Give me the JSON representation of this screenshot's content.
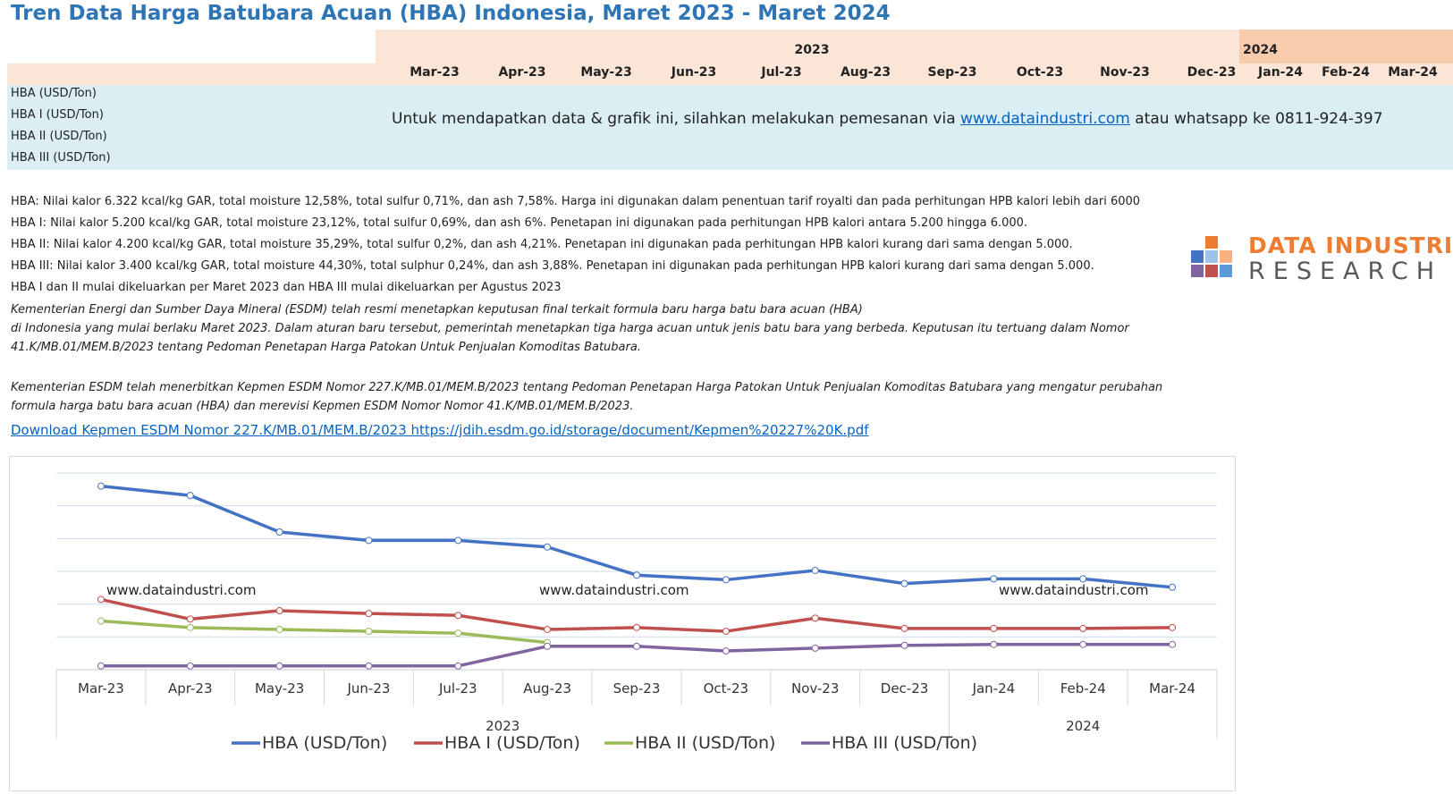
{
  "title": "Tren Data Harga Batubara Acuan (HBA) Indonesia, Maret 2023 - Maret 2024",
  "table": {
    "year_2023": "2023",
    "year_2024": "2024",
    "months": [
      "Mar-23",
      "Apr-23",
      "May-23",
      "Jun-23",
      "Jul-23",
      "Aug-23",
      "Sep-23",
      "Oct-23",
      "Nov-23",
      "Dec-23",
      "Jan-24",
      "Feb-24",
      "Mar-24"
    ],
    "rows": [
      "HBA (USD/Ton)",
      "HBA I (USD/Ton)",
      "HBA II (USD/Ton)",
      "HBA III (USD/Ton)"
    ],
    "message_prefix": "Untuk mendapatkan data & grafik ini, silahkan melakukan pemesanan via ",
    "message_link": "www.dataindustri.com",
    "message_suffix": " atau whatsapp ke 0811-924-397"
  },
  "notes": [
    "HBA: Nilai kalor 6.322 kcal/kg GAR, total moisture 12,58%, total sulfur 0,71%, dan ash 7,58%. Harga ini digunakan dalam penentuan tarif royalti dan pada perhitungan HPB kalori lebih dari 6000",
    "HBA I: Nilai kalor 5.200 kcal/kg GAR, total moisture 23,12%, total sulfur 0,69%, dan ash 6%. Penetapan ini digunakan pada perhitungan HPB kalori antara 5.200 hingga 6.000.",
    "HBA II: Nilai kalor 4.200 kcal/kg GAR, total moisture 35,29%, total sulfur 0,2%, dan ash 4,21%. Penetapan ini digunakan pada perhitungan HPB kalori kurang dari sama dengan 5.000.",
    "HBA III: Nilai kalor 3.400 kcal/kg GAR, total moisture 44,30%, total sulphur 0,24%, dan ash 3,88%. Penetapan ini digunakan pada perhitungan HPB kalori kurang dari sama dengan 5.000.",
    "HBA I dan II mulai dikeluarkan per Maret 2023 dan HBA III mulai dikeluarkan per Agustus 2023"
  ],
  "italic_notes": [
    "Kementerian Energi dan Sumber Daya Mineral (ESDM) telah resmi menetapkan keputusan final terkait formula baru harga batu bara acuan (HBA)",
    "di Indonesia yang mulai berlaku Maret 2023. Dalam aturan baru tersebut, pemerintah menetapkan tiga harga acuan untuk jenis batu bara yang berbeda. Keputusan itu tertuang dalam Nomor",
    "41.K/MB.01/MEM.B/2023 tentang Pedoman Penetapan Harga Patokan Untuk Penjualan Komoditas Batubara.",
    "Kementerian ESDM telah menerbitkan Kepmen ESDM Nomor 227.K/MB.01/MEM.B/2023 tentang Pedoman Penetapan Harga Patokan Untuk Penjualan Komoditas Batubara yang mengatur perubahan",
    "formula harga batu bara acuan (HBA) dan merevisi Kepmen ESDM Nomor Nomor 41.K/MB.01/MEM.B/2023."
  ],
  "download_link": "Download Kepmen ESDM Nomor 227.K/MB.01/MEM.B/2023 https://jdih.esdm.go.id/storage/document/Kepmen%20227%20K.pdf",
  "logo": {
    "line1": "DATA INDUSTRI",
    "line2": "RESEARCH"
  },
  "watermark": "www.dataindustri.com",
  "colors": {
    "title": "#2e75b6",
    "hba": "#4472c4",
    "hba1": "#c0504d",
    "hba2": "#9bbb59",
    "hba3": "#8064a2",
    "logo_orange": "#ed7d31"
  },
  "chart_data": {
    "type": "line",
    "categories": [
      "Mar-23",
      "Apr-23",
      "May-23",
      "Jun-23",
      "Jul-23",
      "Aug-23",
      "Sep-23",
      "Oct-23",
      "Nov-23",
      "Dec-23",
      "Jan-24",
      "Feb-24",
      "Mar-24"
    ],
    "year_groups": [
      {
        "label": "2023",
        "count": 10
      },
      {
        "label": "2024",
        "count": 3
      }
    ],
    "series": [
      {
        "name": "HBA  (USD/Ton)",
        "values": [
          292,
          282,
          243,
          234,
          234,
          227,
          197,
          192,
          202,
          188,
          193,
          193,
          184
        ]
      },
      {
        "name": "HBA I  (USD/Ton)",
        "values": [
          171,
          150,
          159,
          156,
          154,
          139,
          141,
          137,
          151,
          140,
          140,
          140,
          141
        ]
      },
      {
        "name": "HBA II  (USD/Ton)",
        "values": [
          148,
          141,
          139,
          137,
          135,
          125,
          null,
          null,
          null,
          null,
          null,
          null,
          null
        ]
      },
      {
        "name": "HBA III  (USD/Ton)",
        "values": [
          100,
          100,
          100,
          100,
          100,
          121,
          121,
          116,
          119,
          122,
          123,
          123,
          123
        ]
      }
    ],
    "ylim": [
      96,
      306
    ],
    "grid": true,
    "y_tick_labels_visible": false,
    "legend_position": "bottom"
  }
}
